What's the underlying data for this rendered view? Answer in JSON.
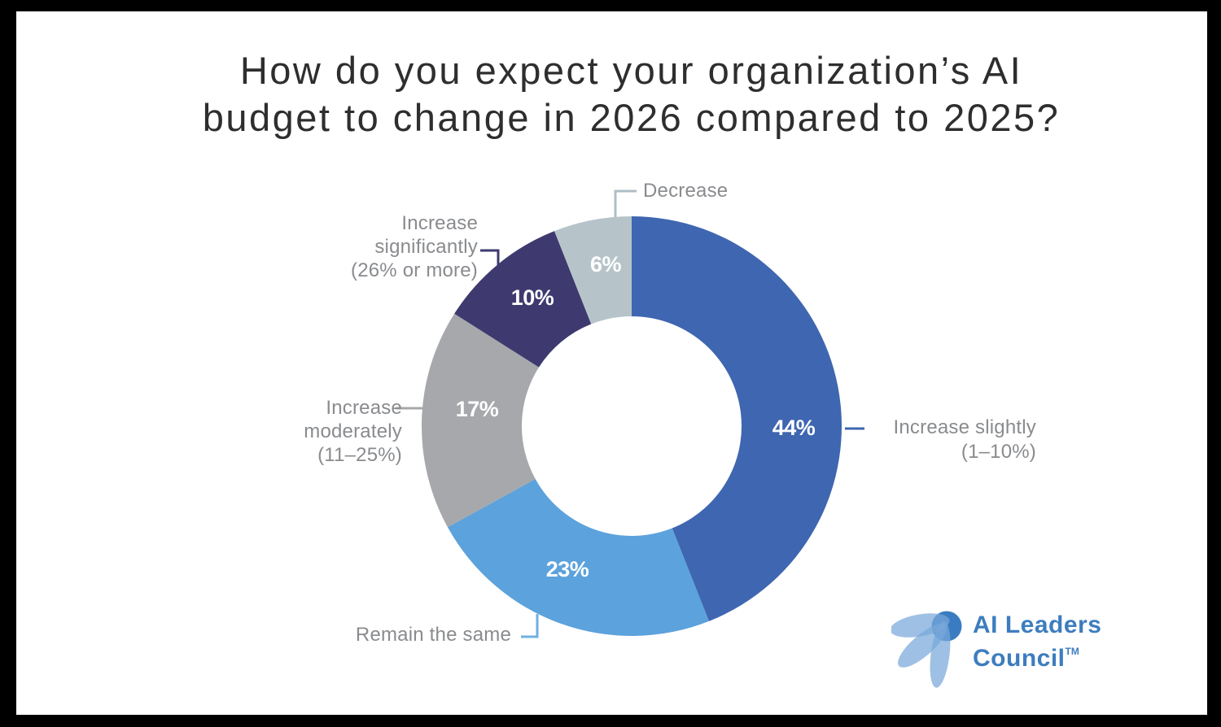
{
  "title": {
    "line1": "How do you expect your organization’s AI",
    "line2": "budget to change in 2026 compared to 2025?"
  },
  "chart_data": {
    "type": "pie",
    "subtype": "donut",
    "title": "How do you expect your organization’s AI budget to change in 2026 compared to 2025?",
    "units": "%",
    "start_angle_deg": 0,
    "direction": "clockwise",
    "inner_radius_ratio": 0.52,
    "segments": [
      {
        "label": "Increase slightly (1–10%)",
        "label_lines": [
          "Increase slightly",
          "(1–10%)"
        ],
        "value": 44,
        "display": "44%",
        "color": "#3f66b0",
        "connector_color": "#3f66b0"
      },
      {
        "label": "Remain the same",
        "label_lines": [
          "Remain the same"
        ],
        "value": 23,
        "display": "23%",
        "color": "#5ca2dc",
        "connector_color": "#6fb0e2"
      },
      {
        "label": "Increase moderately (11–25%)",
        "label_lines": [
          "Increase moderately",
          "(11–25%)"
        ],
        "value": 17,
        "display": "17%",
        "color": "#a6a8ab",
        "connector_color": "#a6a8ab"
      },
      {
        "label": "Increase significantly (26% or more)",
        "label_lines": [
          "Increase significantly",
          "(26% or more)"
        ],
        "value": 10,
        "display": "10%",
        "color": "#3e3a6f",
        "connector_color": "#3e3a6f"
      },
      {
        "label": "Decrease",
        "label_lines": [
          "Decrease"
        ],
        "value": 6,
        "display": "6%",
        "color": "#b6c4c9",
        "connector_color": "#aebfc5"
      }
    ]
  },
  "logo": {
    "line1": "AI Leaders",
    "line2": "Council",
    "tm": "TM"
  },
  "colors": {
    "background": "#ffffff",
    "frame": "#000000",
    "title_text": "#2e2e2e",
    "callout_text": "#898b8e",
    "percent_text": "#ffffff",
    "logo_blue": "#3d7dbf"
  }
}
